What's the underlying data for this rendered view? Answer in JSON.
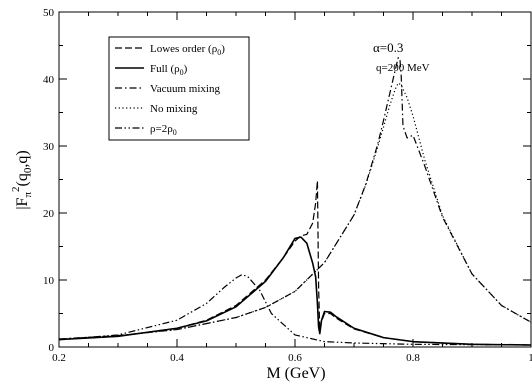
{
  "chart_data": {
    "type": "line",
    "xlabel": "M (GeV)",
    "ylabel": {
      "base": "|F",
      "sub": "π",
      "sup": "2",
      "rest": "(q",
      "sub2": "0",
      "tail": ",q)"
    },
    "xlim": [
      0.2,
      1.0
    ],
    "ylim": [
      0,
      50
    ],
    "xticks": [
      "0.2",
      "0.4",
      "0.6",
      "0.8",
      "1"
    ],
    "yticks": [
      "0",
      "10",
      "20",
      "30",
      "40",
      "50"
    ],
    "grid": false,
    "legend_position": "top-left",
    "annotations": [
      "α=0.3",
      "q=200 MeV"
    ],
    "series": [
      {
        "name": "Lowes order (ρ0)",
        "name_parts": {
          "main": "Lowes order (ρ",
          "sub": "0",
          "tail": ")"
        },
        "style": "dashed",
        "x": [
          0.2,
          0.3,
          0.4,
          0.45,
          0.5,
          0.55,
          0.58,
          0.6,
          0.61,
          0.62,
          0.63,
          0.635,
          0.638,
          0.64,
          0.642,
          0.645,
          0.65,
          0.66,
          0.67,
          0.7,
          0.75,
          0.8,
          0.9,
          1.0
        ],
        "y": [
          1.1,
          1.6,
          2.8,
          4.0,
          6.2,
          10.0,
          13.3,
          15.8,
          16.6,
          16.8,
          18.5,
          21.5,
          24.8,
          9.0,
          2.5,
          3.8,
          5.0,
          5.0,
          4.3,
          2.7,
          1.4,
          0.8,
          0.4,
          0.3
        ]
      },
      {
        "name": "Full (ρ0)",
        "name_parts": {
          "main": "Full (ρ",
          "sub": "0",
          "tail": ")"
        },
        "style": "solid",
        "x": [
          0.2,
          0.3,
          0.4,
          0.45,
          0.5,
          0.55,
          0.58,
          0.6,
          0.61,
          0.62,
          0.63,
          0.635,
          0.638,
          0.64,
          0.642,
          0.645,
          0.65,
          0.66,
          0.67,
          0.7,
          0.75,
          0.8,
          0.9,
          1.0
        ],
        "y": [
          1.1,
          1.6,
          2.8,
          3.9,
          6.0,
          9.8,
          13.3,
          16.2,
          16.4,
          15.5,
          12.5,
          10.5,
          6.5,
          3.0,
          2.0,
          4.0,
          5.3,
          5.2,
          4.5,
          2.8,
          1.4,
          0.8,
          0.4,
          0.3
        ]
      },
      {
        "name": "Vacuum mixing",
        "style": "dashdot",
        "x": [
          0.2,
          0.3,
          0.4,
          0.5,
          0.55,
          0.6,
          0.65,
          0.7,
          0.72,
          0.74,
          0.75,
          0.76,
          0.77,
          0.775,
          0.778,
          0.78,
          0.783,
          0.79,
          0.8,
          0.82,
          0.85,
          0.9,
          0.95,
          1.0
        ],
        "y": [
          1.2,
          1.7,
          2.6,
          4.4,
          5.9,
          8.3,
          12.6,
          19.7,
          24.3,
          30.2,
          33.8,
          37.6,
          41.4,
          43.2,
          42.8,
          40.5,
          33.0,
          31.2,
          31.6,
          27.0,
          19.4,
          10.9,
          6.2,
          3.7
        ]
      },
      {
        "name": "No mixing",
        "style": "dotted",
        "x": [
          0.2,
          0.3,
          0.4,
          0.5,
          0.55,
          0.6,
          0.65,
          0.7,
          0.72,
          0.74,
          0.75,
          0.76,
          0.77,
          0.775,
          0.78,
          0.79,
          0.8,
          0.82,
          0.85,
          0.9,
          0.95,
          1.0
        ],
        "y": [
          1.2,
          1.7,
          2.6,
          4.4,
          5.9,
          8.3,
          12.6,
          19.7,
          24.2,
          29.8,
          32.8,
          35.9,
          38.5,
          39.4,
          39.1,
          37.2,
          34.5,
          27.9,
          19.6,
          10.9,
          6.2,
          3.7
        ]
      },
      {
        "name": "ρ=2ρ0",
        "name_parts": {
          "main": "ρ=2ρ",
          "sub": "0",
          "tail": ""
        },
        "style": "dashdotdot",
        "x": [
          0.2,
          0.3,
          0.4,
          0.45,
          0.48,
          0.5,
          0.51,
          0.52,
          0.54,
          0.56,
          0.6,
          0.65,
          0.7,
          0.8,
          1.0
        ],
        "y": [
          1.1,
          1.8,
          4.0,
          6.5,
          8.9,
          10.3,
          10.8,
          10.5,
          8.5,
          5.0,
          1.8,
          0.8,
          0.6,
          0.4,
          0.3
        ]
      }
    ]
  }
}
